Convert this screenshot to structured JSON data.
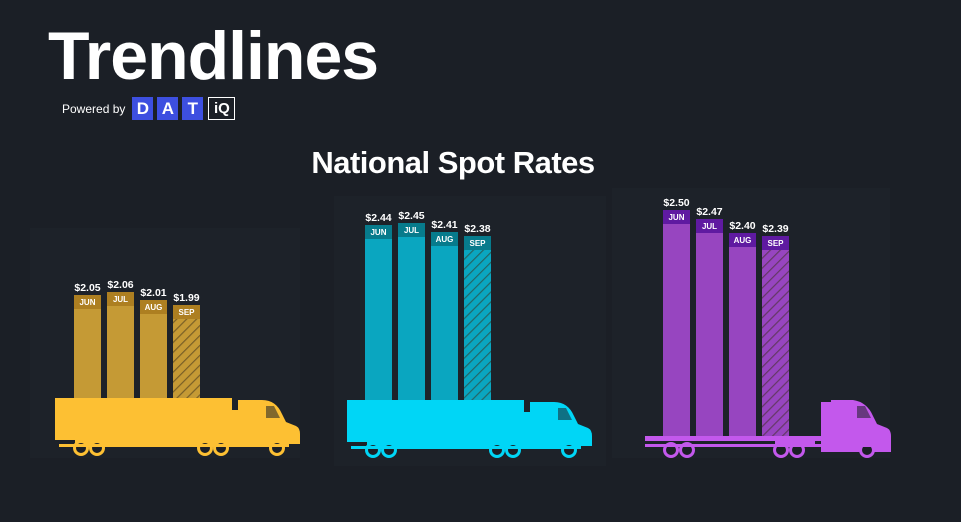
{
  "brand": {
    "title": "Trendlines",
    "powered_by": "Powered by",
    "dat_letters": [
      "D",
      "A",
      "T"
    ],
    "iq": "iQ"
  },
  "chart_data": [
    {
      "type": "bar",
      "title": "National Spot Rates",
      "categories": [
        "JUN",
        "JUL",
        "AUG",
        "SEP"
      ],
      "values": [
        2.05,
        2.06,
        2.01,
        1.99
      ],
      "value_labels": [
        "$2.05",
        "$2.06",
        "$2.01",
        "$1.99"
      ],
      "bar_color": "#c59a35",
      "tag_color": "#ad7f21",
      "truck_color": "#fdc033",
      "last_bar_hatched": true
    },
    {
      "type": "bar",
      "categories": [
        "JUN",
        "JUL",
        "AUG",
        "SEP"
      ],
      "values": [
        2.44,
        2.45,
        2.41,
        2.38
      ],
      "value_labels": [
        "$2.44",
        "$2.45",
        "$2.41",
        "$2.38"
      ],
      "bar_color": "#0aa6c0",
      "tag_color": "#077b8c",
      "truck_color": "#00d6f6",
      "last_bar_hatched": true
    },
    {
      "type": "bar",
      "categories": [
        "JUN",
        "JUL",
        "AUG",
        "SEP"
      ],
      "values": [
        2.5,
        2.47,
        2.4,
        2.39
      ],
      "value_labels": [
        "$2.50",
        "$2.47",
        "$2.40",
        "$2.39"
      ],
      "bar_color": "#9745c0",
      "tag_color": "#5f1aa1",
      "truck_color": "#c358ec",
      "last_bar_hatched": true
    }
  ]
}
